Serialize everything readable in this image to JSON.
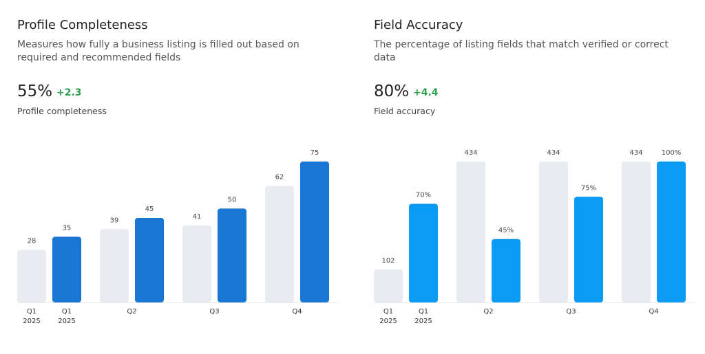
{
  "chart_data": [
    {
      "type": "bar",
      "title": "Profile Completeness",
      "subtitle": "Measures how fully a business listing is filled out based on required and recommended fields",
      "kpi": "55%",
      "kpi_change": "+2.3",
      "kpi_label": "Profile completeness",
      "categories": [
        "Q1\n2025",
        "Q2",
        "Q3",
        "Q4"
      ],
      "series": [
        {
          "color": "#e8ebef",
          "values": [
            28,
            39,
            41,
            62
          ]
        },
        {
          "color": "#1976d2",
          "values": [
            35,
            45,
            50,
            75
          ]
        }
      ]
    },
    {
      "type": "bar",
      "title": "Field Accuracy",
      "subtitle": "The percentage of listing fields that match verified or correct data",
      "kpi": "80%",
      "kpi_change": "+4.4",
      "kpi_label": "Field accuracy",
      "categories": [
        "Q1\n2025",
        "Q2",
        "Q3",
        "Q4"
      ],
      "series": [
        {
          "color": "#e8ebef",
          "values": [
            102,
            434,
            434,
            434
          ]
        },
        {
          "color": "#0b9bf5",
          "values": [
            70,
            45,
            75,
            100
          ],
          "value_labels": [
            "70%",
            "45%",
            "75%",
            "100%"
          ],
          "axis": "y2"
        }
      ]
    }
  ]
}
